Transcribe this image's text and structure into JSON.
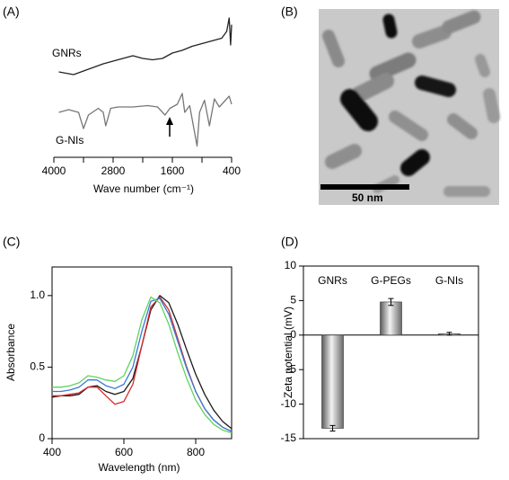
{
  "chart_data": [
    {
      "type": "line",
      "panel_label": "(A)",
      "xlabel": "Wave number (cm⁻¹)",
      "xlim": [
        4000,
        400
      ],
      "xticks": [
        4000,
        2800,
        1600,
        400
      ],
      "minor_xticks": [
        3400,
        2200,
        1000
      ],
      "ylim": [
        0,
        10
      ],
      "series": [
        {
          "name": "GNRs",
          "color": "#222222",
          "x": [
            3900,
            3600,
            3300,
            3000,
            2800,
            2600,
            2400,
            2200,
            2000,
            1800,
            1600,
            1400,
            1200,
            1000,
            800,
            600,
            500,
            450,
            420,
            400
          ],
          "values": [
            6.0,
            5.8,
            6.2,
            6.6,
            6.8,
            7.0,
            7.2,
            7.0,
            6.9,
            7.0,
            7.4,
            7.6,
            7.9,
            8.1,
            8.3,
            8.5,
            9.0,
            10.0,
            8.0,
            9.5
          ]
        },
        {
          "name": "G-NIs",
          "color": "#777777",
          "x": [
            3900,
            3700,
            3500,
            3400,
            3300,
            3100,
            3000,
            2950,
            2850,
            2700,
            2400,
            2100,
            1900,
            1750,
            1650,
            1500,
            1400,
            1350,
            1250,
            1150,
            1100,
            1050,
            950,
            850,
            750,
            650,
            550,
            450,
            400
          ],
          "values": [
            3.0,
            3.2,
            3.0,
            1.8,
            2.8,
            3.3,
            3.0,
            2.0,
            3.3,
            3.4,
            3.4,
            3.5,
            3.4,
            2.8,
            3.3,
            3.6,
            4.4,
            3.0,
            3.5,
            1.5,
            0.5,
            3.0,
            3.9,
            2.0,
            4.0,
            3.4,
            3.8,
            4.2,
            3.6
          ]
        }
      ]
    },
    {
      "type": "line",
      "panel_label": "(C)",
      "xlabel": "Wavelength (nm)",
      "ylabel": "Absorbance",
      "xlim": [
        400,
        900
      ],
      "xticks": [
        400,
        600,
        800
      ],
      "ylim": [
        0,
        1.2
      ],
      "yticks": [
        0,
        0.5,
        {
          "value": 1,
          "label": "1.0"
        }
      ],
      "x": [
        400,
        425,
        450,
        475,
        500,
        525,
        550,
        575,
        600,
        625,
        650,
        675,
        700,
        725,
        750,
        775,
        800,
        825,
        850,
        875,
        900
      ],
      "series": [
        {
          "color": "#1a1a1a",
          "values": [
            0.29,
            0.3,
            0.3,
            0.31,
            0.36,
            0.37,
            0.33,
            0.31,
            0.33,
            0.42,
            0.65,
            0.9,
            1.0,
            0.95,
            0.8,
            0.62,
            0.45,
            0.31,
            0.2,
            0.12,
            0.07
          ]
        },
        {
          "color": "#d62a2a",
          "values": [
            0.3,
            0.3,
            0.31,
            0.32,
            0.36,
            0.36,
            0.3,
            0.24,
            0.26,
            0.38,
            0.65,
            0.92,
            0.99,
            0.9,
            0.7,
            0.5,
            0.33,
            0.21,
            0.13,
            0.08,
            0.05
          ]
        },
        {
          "color": "#3a78d8",
          "values": [
            0.33,
            0.33,
            0.34,
            0.36,
            0.41,
            0.41,
            0.37,
            0.35,
            0.38,
            0.5,
            0.75,
            0.96,
            0.98,
            0.87,
            0.68,
            0.49,
            0.33,
            0.21,
            0.13,
            0.08,
            0.05
          ]
        },
        {
          "color": "#5fd35f",
          "values": [
            0.36,
            0.36,
            0.37,
            0.39,
            0.44,
            0.43,
            0.41,
            0.4,
            0.44,
            0.58,
            0.83,
            0.99,
            0.95,
            0.8,
            0.6,
            0.42,
            0.27,
            0.17,
            0.1,
            0.06,
            0.04
          ]
        }
      ]
    },
    {
      "type": "bar",
      "panel_label": "(D)",
      "ylabel": "Zeta potential (mV)",
      "categories": [
        "GNRs",
        "G-PEGs",
        "G-NIs"
      ],
      "values": [
        -13.5,
        4.8,
        0.2
      ],
      "errors": [
        0.4,
        0.5,
        0.2
      ],
      "ylim": [
        -15,
        10
      ],
      "yticks": [
        -15,
        -10,
        -5,
        0,
        5,
        10
      ]
    }
  ],
  "image": {
    "panel_label": "(B)",
    "scale_bar": "50 nm"
  }
}
